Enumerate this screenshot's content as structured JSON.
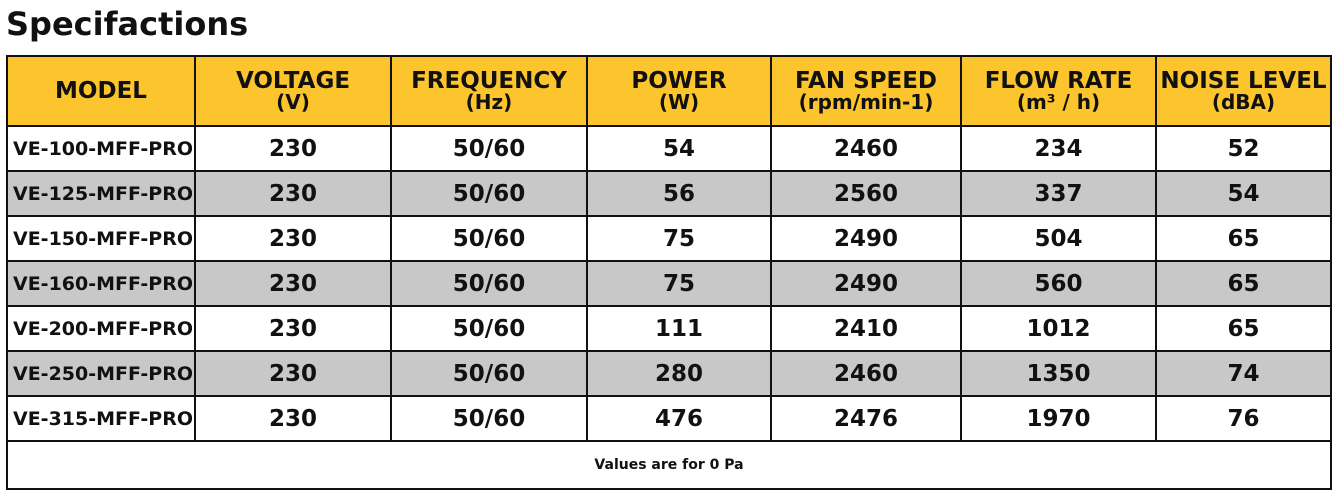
{
  "title": "Specifactions",
  "colors": {
    "header_bg": "#fcc42d",
    "alt_row_bg": "#c8c8c8",
    "border": "#111111"
  },
  "table": {
    "headers": [
      {
        "label": "MODEL",
        "unit": ""
      },
      {
        "label": "VOLTAGE",
        "unit": "(V)"
      },
      {
        "label": "FREQUENCY",
        "unit": "(Hz)"
      },
      {
        "label": "POWER",
        "unit": "(W)"
      },
      {
        "label": "FAN SPEED",
        "unit": "(rpm/min-1)"
      },
      {
        "label": "FLOW RATE",
        "unit": "(m³ / h)"
      },
      {
        "label": "NOISE LEVEL",
        "unit": "(dBA)"
      }
    ],
    "rows": [
      [
        "VE-100-MFF-PRO",
        "230",
        "50/60",
        "54",
        "2460",
        "234",
        "52"
      ],
      [
        "VE-125-MFF-PRO",
        "230",
        "50/60",
        "56",
        "2560",
        "337",
        "54"
      ],
      [
        "VE-150-MFF-PRO",
        "230",
        "50/60",
        "75",
        "2490",
        "504",
        "65"
      ],
      [
        "VE-160-MFF-PRO",
        "230",
        "50/60",
        "75",
        "2490",
        "560",
        "65"
      ],
      [
        "VE-200-MFF-PRO",
        "230",
        "50/60",
        "111",
        "2410",
        "1012",
        "65"
      ],
      [
        "VE-250-MFF-PRO",
        "230",
        "50/60",
        "280",
        "2460",
        "1350",
        "74"
      ],
      [
        "VE-315-MFF-PRO",
        "230",
        "50/60",
        "476",
        "2476",
        "1970",
        "76"
      ]
    ],
    "footnote": "Values are for 0 Pa"
  }
}
